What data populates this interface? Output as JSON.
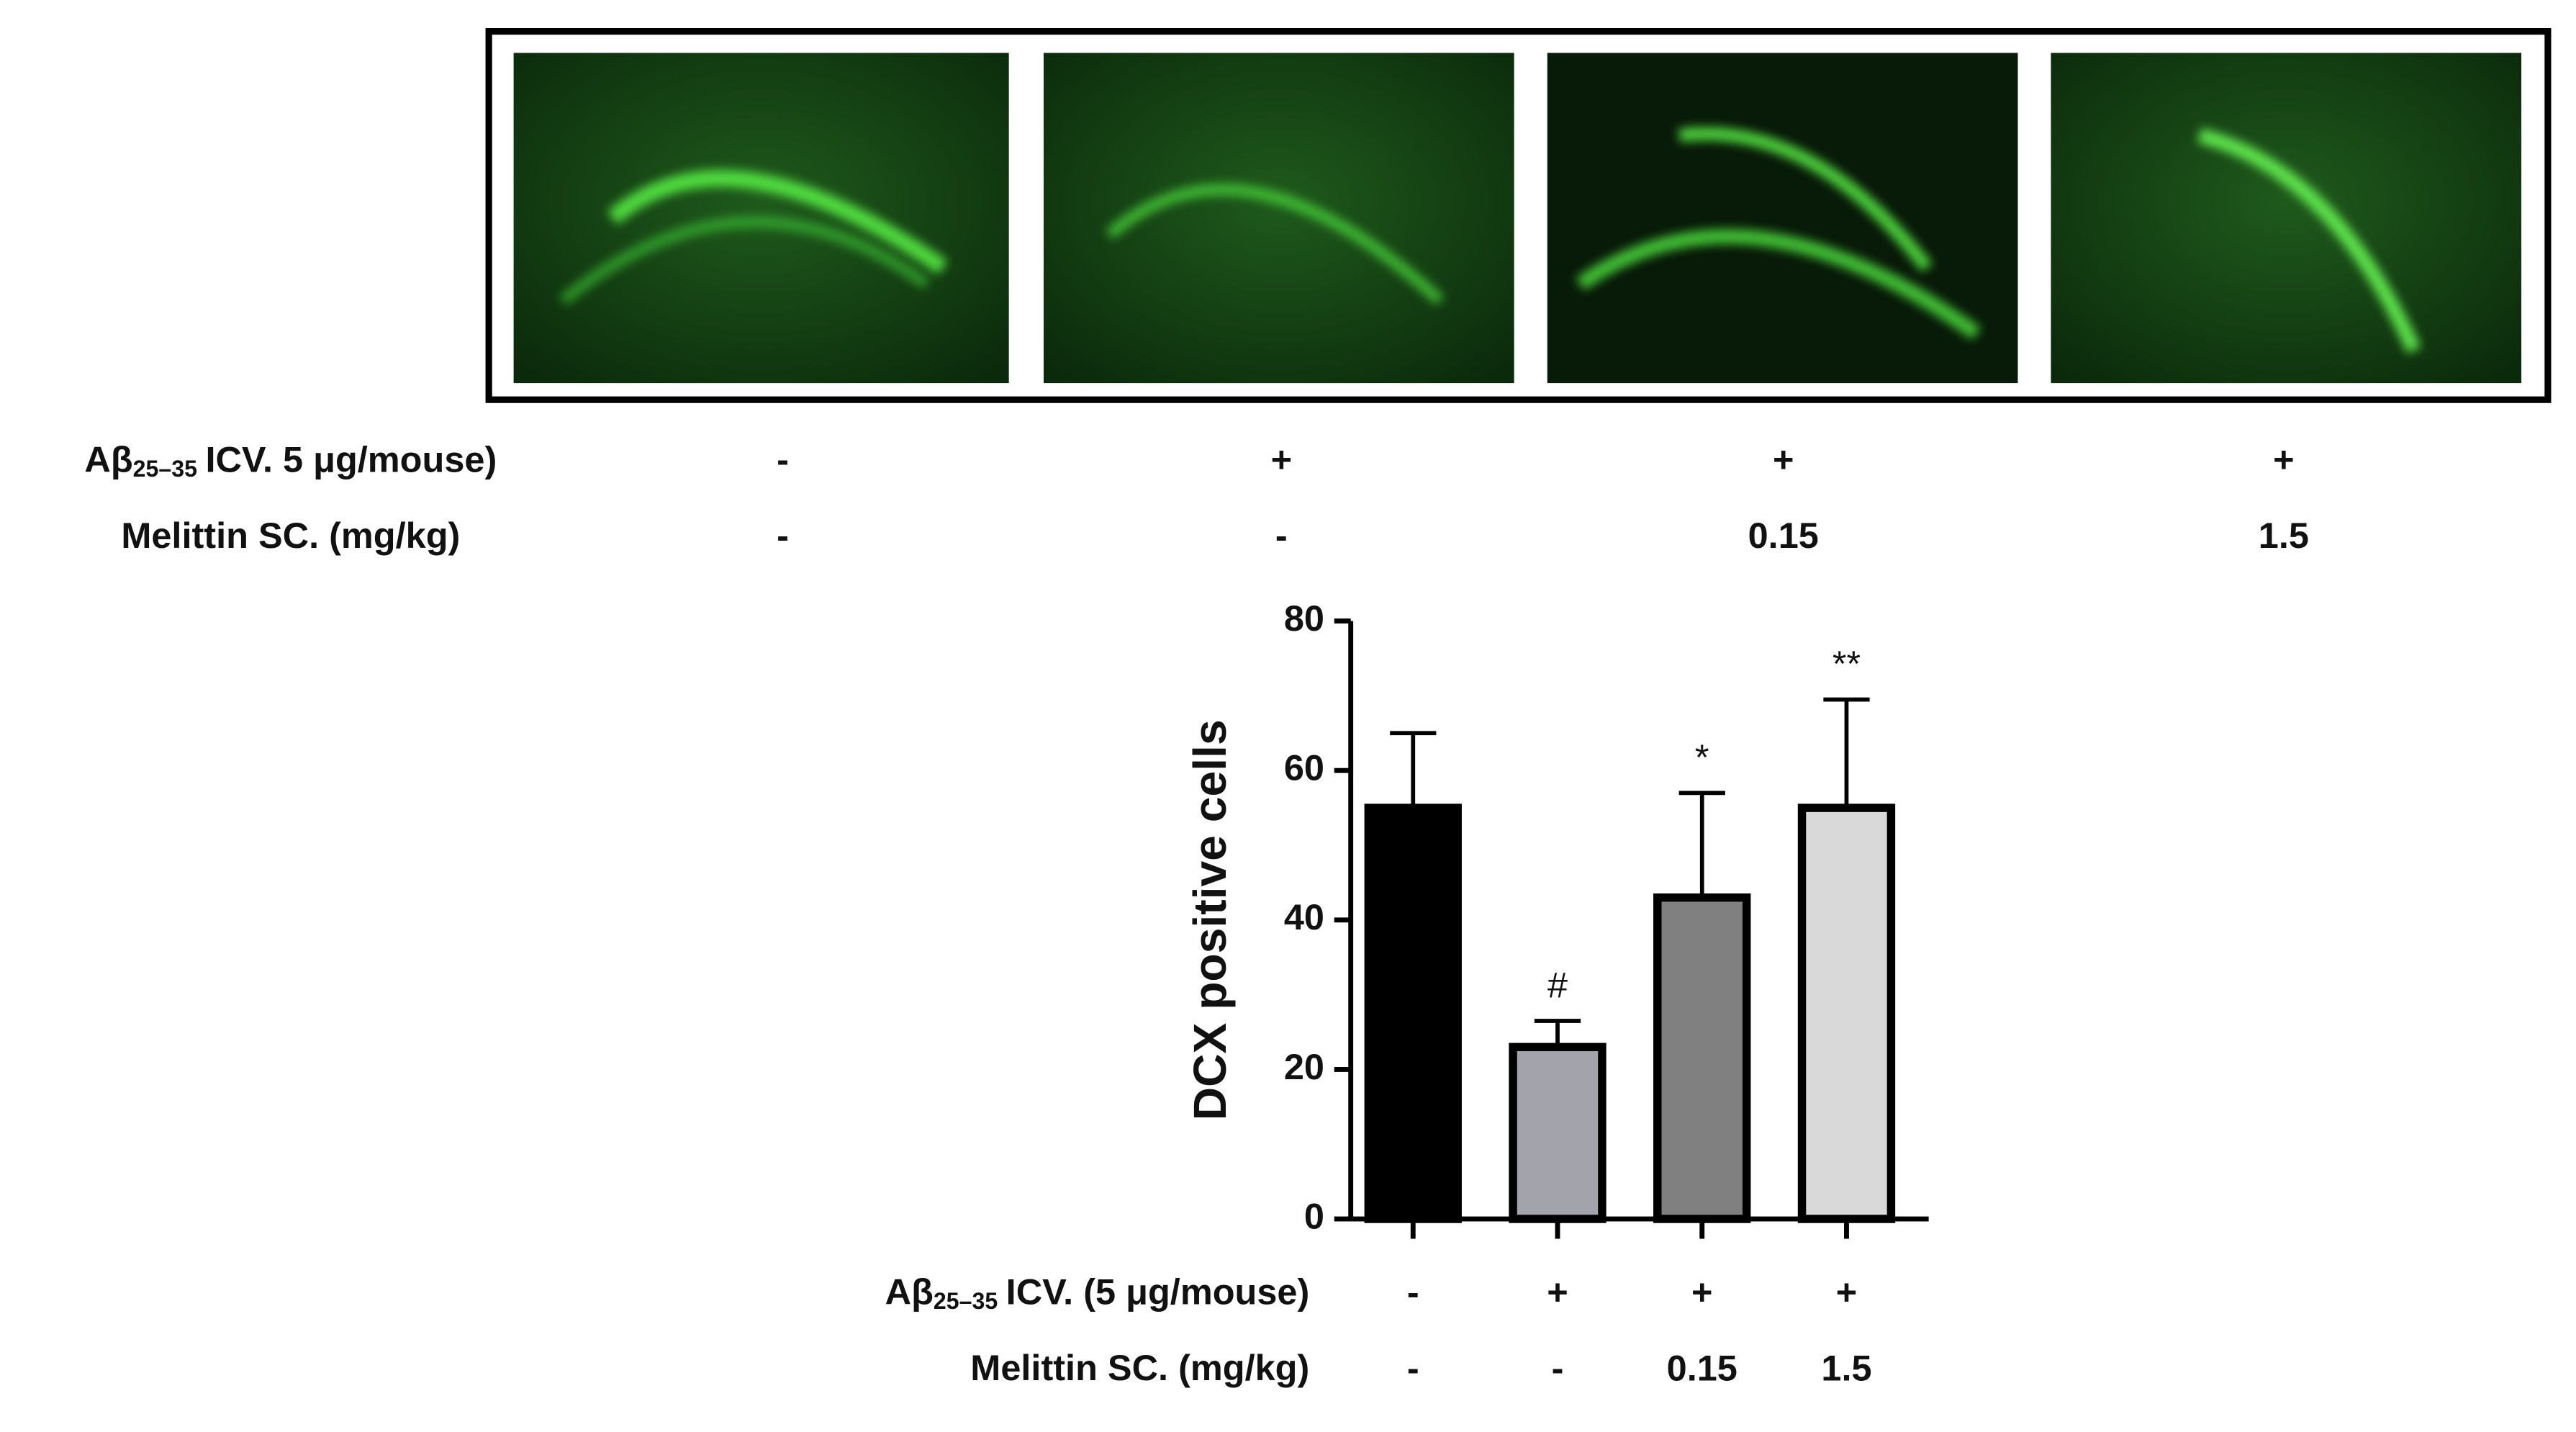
{
  "figure_panel": {
    "treatments": [
      {
        "label": {
          "main": "Aβ",
          "sub": "25–35",
          "rest": "ICV. 5 μg/mouse)"
        },
        "values": [
          "-",
          "+",
          "+",
          "+"
        ]
      },
      {
        "label": {
          "main": "Melittin SC. (mg/kg)"
        },
        "values": [
          "-",
          "-",
          "0.15",
          "1.5"
        ]
      }
    ]
  },
  "chart_data": {
    "type": "bar",
    "y_label": "DCX positive cells",
    "values": [
      55,
      23,
      43,
      55
    ],
    "errors": [
      10,
      3.5,
      14,
      14.5
    ],
    "colors": [
      "#000000",
      "#a3a3ab",
      "#808080",
      "#d9d9d9"
    ],
    "significance": [
      null,
      "#",
      "*",
      "**"
    ],
    "ylim": [
      0,
      80
    ],
    "yticks": [
      0,
      20,
      40,
      60,
      80
    ],
    "treatments": [
      {
        "label": {
          "main": "Aβ",
          "sub": "25–35",
          "rest": "ICV. (5 μg/mouse)"
        },
        "values": [
          "-",
          "+",
          "+",
          "+"
        ]
      },
      {
        "label": {
          "main": "Melittin SC. (mg/kg)"
        },
        "values": [
          "-",
          "-",
          "0.15",
          "1.5"
        ]
      }
    ]
  }
}
